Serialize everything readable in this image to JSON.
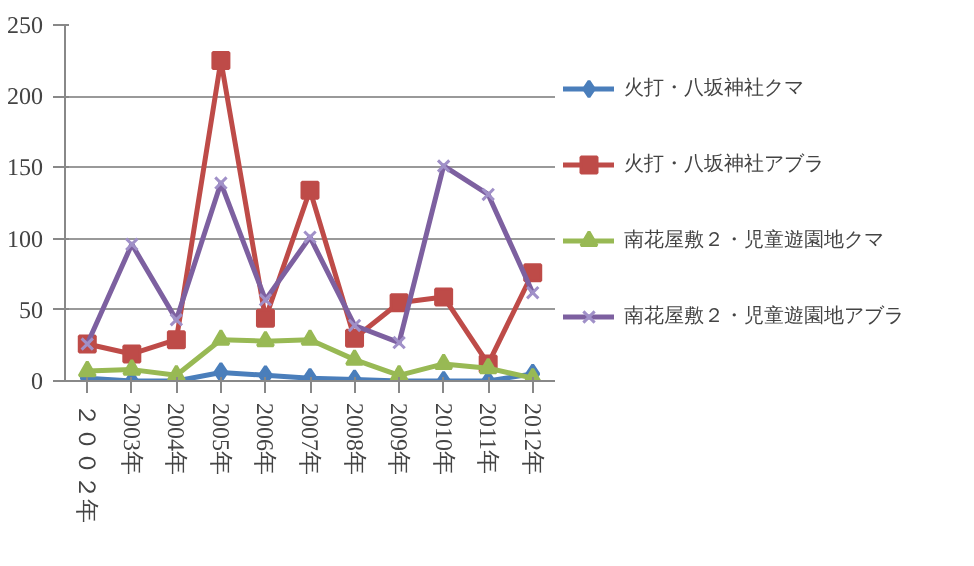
{
  "chart_data": {
    "type": "line",
    "categories": [
      "２００２年",
      "2003年",
      "2004年",
      "2005年",
      "2006年",
      "2007年",
      "2008年",
      "2009年",
      "2010年",
      "2011年",
      "2012年"
    ],
    "series": [
      {
        "name": "火打・八坂神社クマ",
        "color": "#4a7ebb",
        "marker": "diamond",
        "values": [
          2,
          0,
          0,
          6,
          4,
          2,
          1,
          0,
          0,
          0,
          5
        ]
      },
      {
        "name": "火打・八坂神社アブラ",
        "color": "#be4b48",
        "marker": "square",
        "values": [
          26,
          19,
          29,
          225,
          44,
          134,
          30,
          55,
          59,
          12,
          76
        ]
      },
      {
        "name": "南花屋敷２・児童遊園地クマ",
        "color": "#98b954",
        "marker": "triangle",
        "values": [
          7,
          8,
          4,
          29,
          28,
          29,
          15,
          4,
          12,
          9,
          2
        ]
      },
      {
        "name": "南花屋敷２・児童遊園地アブラ",
        "color": "#7d60a0",
        "marker": "cross",
        "values": [
          26,
          96,
          43,
          139,
          57,
          101,
          39,
          27,
          151,
          131,
          62
        ]
      }
    ],
    "ylim": [
      0,
      250
    ],
    "yticks": [
      0,
      50,
      100,
      150,
      200,
      250
    ],
    "grid": "y",
    "legend": "right"
  }
}
